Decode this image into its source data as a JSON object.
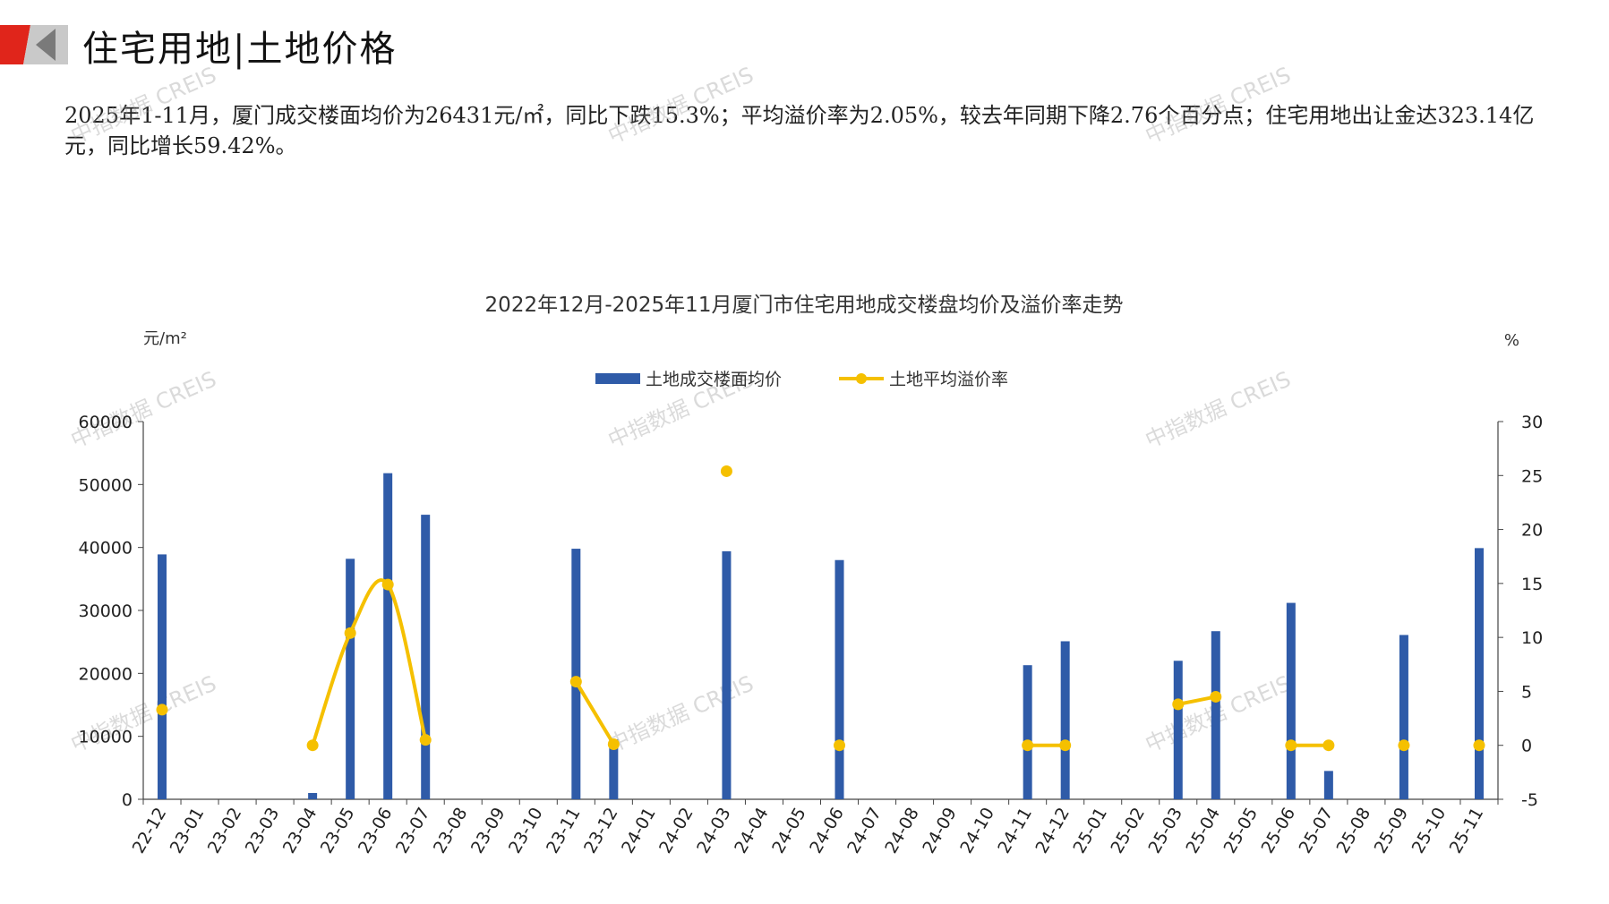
{
  "header": {
    "title": "住宅用地|土地价格",
    "summary": "2025年1-11月，厦门成交楼面均价为26431元/㎡，同比下跌15.3%；平均溢价率为2.05%，较去年同期下降2.76个百分点；住宅用地出让金达323.14亿元，同比增长59.42%。"
  },
  "watermark": "中指数据 CREIS",
  "colors": {
    "bar": "#2f5ba8",
    "line": "#f5c000",
    "brand_red": "#e0251b"
  },
  "chart_data": {
    "type": "bar",
    "title": "2022年12月-2025年11月厦门市住宅用地成交楼盘均价及溢价率走势",
    "y_unit_left": "元/m²",
    "y_unit_right": "%",
    "ylim_left": [
      0,
      60000
    ],
    "yticks_left": [
      "0",
      "10000",
      "20000",
      "30000",
      "40000",
      "50000",
      "60000"
    ],
    "ylim_right": [
      -5,
      30
    ],
    "yticks_right": [
      "-5",
      "0",
      "5",
      "10",
      "15",
      "20",
      "25",
      "30"
    ],
    "legend_position": "top-center",
    "categories": [
      "22-12",
      "23-01",
      "23-02",
      "23-03",
      "23-04",
      "23-05",
      "23-06",
      "23-07",
      "23-08",
      "23-09",
      "23-10",
      "23-11",
      "23-12",
      "24-01",
      "24-02",
      "24-03",
      "24-04",
      "24-05",
      "24-06",
      "24-07",
      "24-08",
      "24-09",
      "24-10",
      "24-11",
      "24-12",
      "25-01",
      "25-02",
      "25-03",
      "25-04",
      "25-05",
      "25-06",
      "25-07",
      "25-08",
      "25-09",
      "25-10",
      "25-11"
    ],
    "series": [
      {
        "name": "土地成交楼面均价",
        "type": "bar",
        "axis": "left",
        "values": [
          38900,
          null,
          null,
          null,
          1000,
          38200,
          51800,
          45200,
          null,
          null,
          null,
          39800,
          9500,
          null,
          null,
          39400,
          null,
          null,
          38000,
          null,
          null,
          null,
          null,
          21300,
          25100,
          null,
          null,
          22000,
          26700,
          null,
          31200,
          4500,
          null,
          26100,
          null,
          39900
        ]
      },
      {
        "name": "土地平均溢价率",
        "type": "line",
        "axis": "right",
        "values": [
          3.3,
          null,
          null,
          null,
          0.0,
          10.4,
          14.9,
          0.5,
          null,
          null,
          null,
          5.9,
          0.1,
          null,
          null,
          25.4,
          null,
          null,
          0.0,
          null,
          null,
          null,
          null,
          0.0,
          0.0,
          null,
          null,
          3.8,
          4.5,
          null,
          0.0,
          0.0,
          null,
          0.0,
          null,
          0.0
        ]
      }
    ]
  }
}
